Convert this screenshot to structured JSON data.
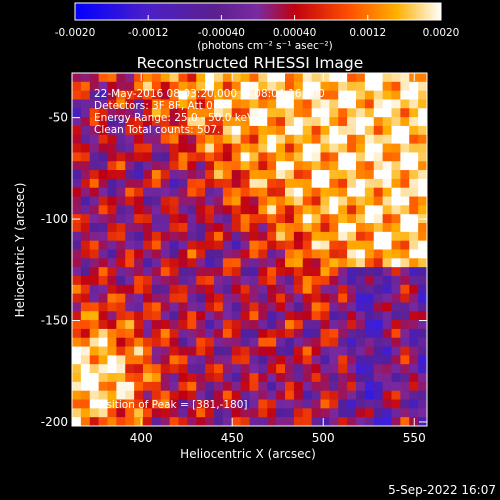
{
  "chart_data": {
    "type": "heatmap",
    "title": "Reconstructed RHESSI Image",
    "xlabel": "Heliocentric X (arcsec)",
    "ylabel": "Heliocentric Y (arcsec)",
    "xlim": [
      362,
      557
    ],
    "ylim": [
      -202,
      -28
    ],
    "x_ticks": [
      400,
      450,
      500,
      550
    ],
    "y_ticks": [
      -50,
      -100,
      -150,
      -200
    ],
    "colorbar": {
      "min": -0.002,
      "max": 0.002,
      "ticks": [
        "-0.0020",
        "-0.0012",
        "-0.00040",
        "0.00040",
        "0.0012",
        "0.0020"
      ],
      "unit_label": "(photons cm⁻² s⁻¹ asec⁻²)",
      "colors": [
        "#0000ff",
        "#4c1fc8",
        "#7a2aa0",
        "#ffa000",
        "#ff5000",
        "#ffe040",
        "#ffffff"
      ]
    },
    "annotations": [
      "22-May-2016 08:03:20.000 to 08:04:16.000",
      "Detectors: 3F 8F, Att 0",
      "Energy Range: 25.0 - 50.0 keV",
      "Clean    Total counts: 507."
    ],
    "peak_label": "Position of Peak = [381,-180]",
    "peak": [
      381,
      -180
    ],
    "footer_date": "5-Sep-2022 16:07"
  }
}
